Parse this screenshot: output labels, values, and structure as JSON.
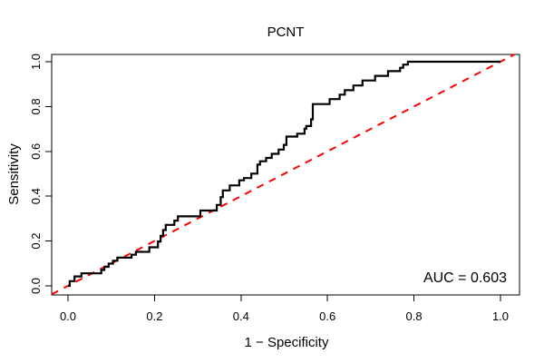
{
  "chart_data": {
    "type": "line",
    "subtype": "roc-step-curve",
    "title": "PCNT",
    "xlabel": "1 − Specificity",
    "ylabel": "Sensitivity",
    "xlim": [
      0,
      1
    ],
    "ylim": [
      0,
      1
    ],
    "x_ticks": [
      "0.0",
      "0.2",
      "0.4",
      "0.6",
      "0.8",
      "1.0"
    ],
    "y_ticks": [
      "0.0",
      "0.2",
      "0.4",
      "0.6",
      "0.8",
      "1.0"
    ],
    "grid": false,
    "legend": "none",
    "annotation": {
      "auc_label": "AUC = 0.603",
      "auc_value": 0.603,
      "position": "bottom-right"
    },
    "series": [
      {
        "name": "ROC curve",
        "color": "#000000",
        "line_style": "solid",
        "draw": "step",
        "start": [
          0.0,
          0.0
        ],
        "end": [
          1.0,
          1.0
        ],
        "step_risers": [
          [
            0.004,
            0.021
          ],
          [
            0.015,
            0.042
          ],
          [
            0.031,
            0.056
          ],
          [
            0.077,
            0.071
          ],
          [
            0.084,
            0.085
          ],
          [
            0.094,
            0.099
          ],
          [
            0.104,
            0.112
          ],
          [
            0.114,
            0.126
          ],
          [
            0.147,
            0.139
          ],
          [
            0.157,
            0.152
          ],
          [
            0.188,
            0.172
          ],
          [
            0.208,
            0.198
          ],
          [
            0.214,
            0.223
          ],
          [
            0.22,
            0.249
          ],
          [
            0.226,
            0.272
          ],
          [
            0.246,
            0.291
          ],
          [
            0.254,
            0.31
          ],
          [
            0.306,
            0.336
          ],
          [
            0.344,
            0.361
          ],
          [
            0.353,
            0.396
          ],
          [
            0.358,
            0.426
          ],
          [
            0.374,
            0.448
          ],
          [
            0.396,
            0.471
          ],
          [
            0.407,
            0.481
          ],
          [
            0.424,
            0.501
          ],
          [
            0.438,
            0.541
          ],
          [
            0.444,
            0.556
          ],
          [
            0.458,
            0.571
          ],
          [
            0.471,
            0.589
          ],
          [
            0.487,
            0.608
          ],
          [
            0.499,
            0.629
          ],
          [
            0.505,
            0.666
          ],
          [
            0.53,
            0.679
          ],
          [
            0.547,
            0.701
          ],
          [
            0.551,
            0.713
          ],
          [
            0.562,
            0.743
          ],
          [
            0.566,
            0.811
          ],
          [
            0.605,
            0.833
          ],
          [
            0.628,
            0.853
          ],
          [
            0.64,
            0.873
          ],
          [
            0.66,
            0.894
          ],
          [
            0.681,
            0.916
          ],
          [
            0.71,
            0.937
          ],
          [
            0.74,
            0.958
          ],
          [
            0.768,
            0.973
          ],
          [
            0.775,
            0.987
          ],
          [
            0.786,
            1.0
          ]
        ]
      },
      {
        "name": "chance diagonal",
        "color": "#FF0000",
        "line_style": "dashed",
        "draw": "line",
        "points": [
          [
            0.0,
            0.0
          ],
          [
            1.0,
            1.0
          ]
        ]
      }
    ]
  }
}
